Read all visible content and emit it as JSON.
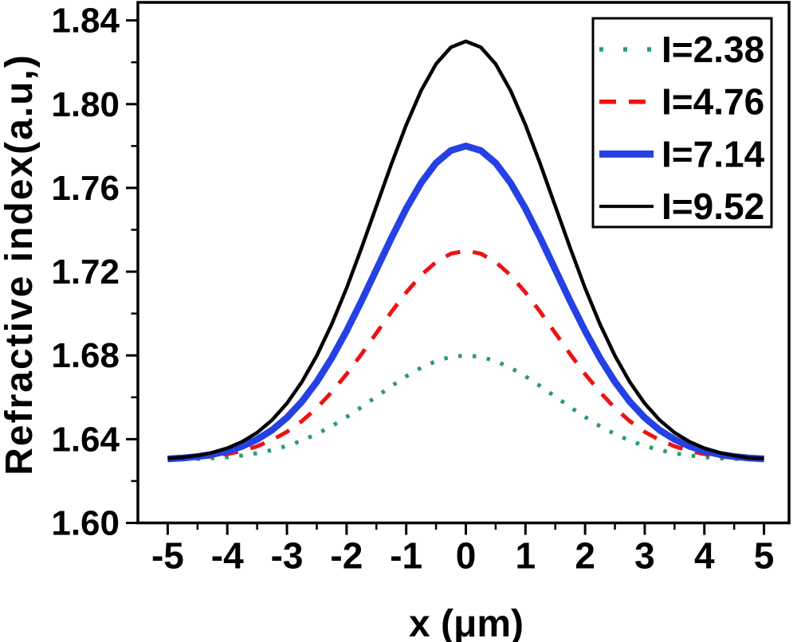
{
  "figure": {
    "background": "#ffffff",
    "frame_color": "#000000"
  },
  "chart_data": {
    "type": "line",
    "title": "",
    "xlabel": "x (μm)",
    "ylabel": "Refractive index(a.u,)",
    "xlim": [
      -5.5,
      5.42
    ],
    "ylim": [
      1.6,
      1.8486
    ],
    "grid": false,
    "legend_position": "top-right",
    "x_tick_values": [
      -5,
      -4,
      -3,
      -2,
      -1,
      0,
      1,
      2,
      3,
      4,
      5
    ],
    "x_tick_labels": [
      "-5",
      "-4",
      "-3",
      "-2",
      "-1",
      "0",
      "1",
      "2",
      "3",
      "4",
      "5"
    ],
    "x_minor_tick_values": [
      -4.5,
      -3.5,
      -2.5,
      -1.5,
      -0.5,
      0.5,
      1.5,
      2.5,
      3.5,
      4.5
    ],
    "y_tick_values": [
      1.6,
      1.64,
      1.68,
      1.72,
      1.76,
      1.8,
      1.84
    ],
    "y_tick_labels": [
      "1.60",
      "1.64",
      "1.68",
      "1.72",
      "1.76",
      "1.80",
      "1.84"
    ],
    "y_minor_tick_values": [
      1.62,
      1.66,
      1.7,
      1.74,
      1.78,
      1.82
    ],
    "x": [
      -5,
      -4.75,
      -4.5,
      -4.25,
      -4,
      -3.75,
      -3.5,
      -3.25,
      -3,
      -2.75,
      -2.5,
      -2.25,
      -2,
      -1.75,
      -1.5,
      -1.25,
      -1,
      -0.75,
      -0.5,
      -0.25,
      0,
      0.25,
      0.5,
      0.75,
      1,
      1.25,
      1.5,
      1.75,
      2,
      2.25,
      2.5,
      2.75,
      3,
      3.25,
      3.5,
      3.75,
      4,
      4.25,
      4.5,
      4.75,
      5
    ],
    "series": [
      {
        "name": "I=2.38",
        "color": "#2b9c68",
        "style": "dotted",
        "width": 5,
        "peak": 1.68,
        "baseline": 1.63,
        "values": [
          1.6302,
          1.6303,
          1.6306,
          1.6309,
          1.6314,
          1.6322,
          1.6333,
          1.6348,
          1.6368,
          1.6393,
          1.6425,
          1.6462,
          1.6506,
          1.6553,
          1.6603,
          1.6653,
          1.67,
          1.6741,
          1.6773,
          1.6793,
          1.68,
          1.6793,
          1.6773,
          1.6741,
          1.67,
          1.6653,
          1.6603,
          1.6553,
          1.6506,
          1.6462,
          1.6425,
          1.6393,
          1.6368,
          1.6348,
          1.6333,
          1.6322,
          1.6314,
          1.6309,
          1.6306,
          1.6303,
          1.6302
        ]
      },
      {
        "name": "I=4.76",
        "color": "#ee1212",
        "style": "dashed",
        "width": 5,
        "peak": 1.73,
        "baseline": 1.63,
        "values": [
          1.6304,
          1.6307,
          1.6311,
          1.6318,
          1.6329,
          1.6344,
          1.6366,
          1.6396,
          1.6435,
          1.6486,
          1.6549,
          1.6625,
          1.6711,
          1.6806,
          1.6907,
          1.7007,
          1.7101,
          1.7183,
          1.7246,
          1.7286,
          1.73,
          1.7286,
          1.7246,
          1.7183,
          1.7101,
          1.7007,
          1.6907,
          1.6806,
          1.6711,
          1.6625,
          1.6549,
          1.6486,
          1.6435,
          1.6396,
          1.6366,
          1.6344,
          1.6329,
          1.6318,
          1.6311,
          1.6307,
          1.6304
        ]
      },
      {
        "name": "I=7.14",
        "color": "#2541e3",
        "style": "solid",
        "width": 8.5,
        "peak": 1.78,
        "baseline": 1.63,
        "values": [
          1.6306,
          1.631,
          1.6317,
          1.6327,
          1.6343,
          1.6366,
          1.6399,
          1.6443,
          1.6503,
          1.6579,
          1.6674,
          1.6787,
          1.6917,
          1.706,
          1.721,
          1.736,
          1.7501,
          1.7624,
          1.7719,
          1.7779,
          1.78,
          1.7779,
          1.7719,
          1.7624,
          1.7501,
          1.736,
          1.721,
          1.706,
          1.6917,
          1.6787,
          1.6674,
          1.6579,
          1.6503,
          1.6443,
          1.6399,
          1.6366,
          1.6343,
          1.6327,
          1.6317,
          1.631,
          1.6306
        ]
      },
      {
        "name": "I=9.52",
        "color": "#000000",
        "style": "solid",
        "width": 4.5,
        "peak": 1.83,
        "baseline": 1.63,
        "values": [
          1.6308,
          1.6313,
          1.6322,
          1.6336,
          1.6357,
          1.6388,
          1.6431,
          1.6491,
          1.6571,
          1.6673,
          1.6799,
          1.6949,
          1.7122,
          1.7313,
          1.7513,
          1.7713,
          1.7901,
          1.8065,
          1.8192,
          1.8272,
          1.83,
          1.8272,
          1.8192,
          1.8065,
          1.7901,
          1.7713,
          1.7513,
          1.7313,
          1.7122,
          1.6949,
          1.6799,
          1.6673,
          1.6571,
          1.6491,
          1.6431,
          1.6388,
          1.6357,
          1.6336,
          1.6322,
          1.631,
          1.6308
        ]
      }
    ]
  }
}
